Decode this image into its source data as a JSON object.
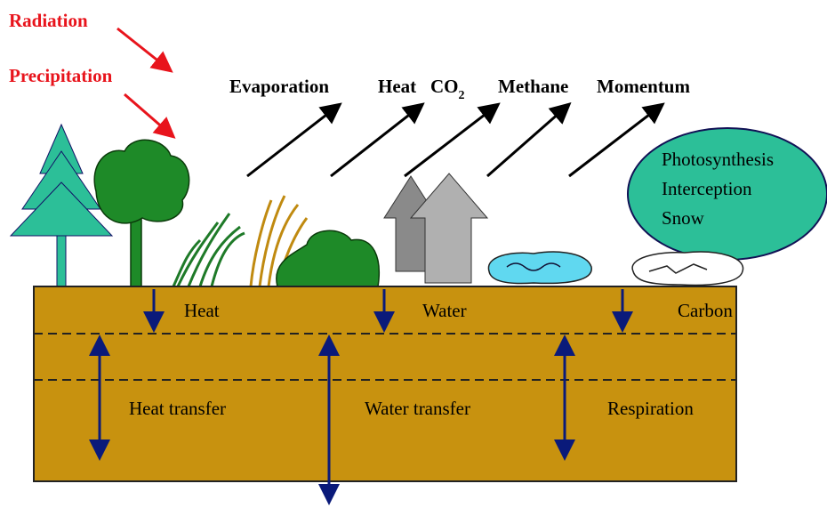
{
  "forcings": [
    "Radiation",
    "Precipitation"
  ],
  "fluxes": [
    "Evaporation",
    "Heat",
    {
      "base": "CO",
      "subscript": "2"
    },
    "Methane",
    "Momentum"
  ],
  "canopy_processes": [
    "Photosynthesis",
    "Interception",
    "Snow"
  ],
  "surface_inputs": [
    "Heat",
    "Water",
    "Carbon"
  ],
  "soil_processes": [
    "Heat transfer",
    "Water transfer",
    "Respiration"
  ]
}
